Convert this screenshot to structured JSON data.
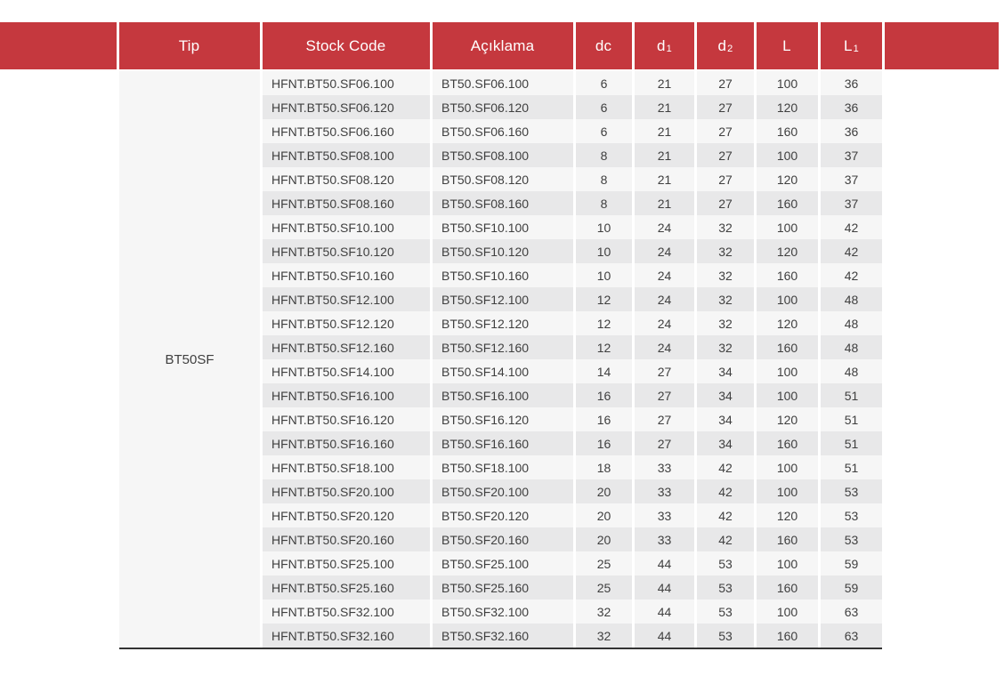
{
  "colors": {
    "header_red": "#c5383e",
    "row_light": "#f6f6f6",
    "row_dark": "#e8e8e9",
    "body_text": "#3f3f3f",
    "bottom_border": "#333333"
  },
  "table": {
    "tip_value": "BT50SF",
    "columns": [
      {
        "label": "Tip",
        "sub": ""
      },
      {
        "label": "Stock Code",
        "sub": ""
      },
      {
        "label": "Açıklama",
        "sub": ""
      },
      {
        "label": "dc",
        "sub": ""
      },
      {
        "label": "d",
        "sub": "1"
      },
      {
        "label": "d",
        "sub": "2"
      },
      {
        "label": "L",
        "sub": ""
      },
      {
        "label": "L",
        "sub": "1"
      }
    ],
    "rows": [
      [
        "HFNT.BT50.SF06.100",
        "BT50.SF06.100",
        "6",
        "21",
        "27",
        "100",
        "36"
      ],
      [
        "HFNT.BT50.SF06.120",
        "BT50.SF06.120",
        "6",
        "21",
        "27",
        "120",
        "36"
      ],
      [
        "HFNT.BT50.SF06.160",
        "BT50.SF06.160",
        "6",
        "21",
        "27",
        "160",
        "36"
      ],
      [
        "HFNT.BT50.SF08.100",
        "BT50.SF08.100",
        "8",
        "21",
        "27",
        "100",
        "37"
      ],
      [
        "HFNT.BT50.SF08.120",
        "BT50.SF08.120",
        "8",
        "21",
        "27",
        "120",
        "37"
      ],
      [
        "HFNT.BT50.SF08.160",
        "BT50.SF08.160",
        "8",
        "21",
        "27",
        "160",
        "37"
      ],
      [
        "HFNT.BT50.SF10.100",
        "BT50.SF10.100",
        "10",
        "24",
        "32",
        "100",
        "42"
      ],
      [
        "HFNT.BT50.SF10.120",
        "BT50.SF10.120",
        "10",
        "24",
        "32",
        "120",
        "42"
      ],
      [
        "HFNT.BT50.SF10.160",
        "BT50.SF10.160",
        "10",
        "24",
        "32",
        "160",
        "42"
      ],
      [
        "HFNT.BT50.SF12.100",
        "BT50.SF12.100",
        "12",
        "24",
        "32",
        "100",
        "48"
      ],
      [
        "HFNT.BT50.SF12.120",
        "BT50.SF12.120",
        "12",
        "24",
        "32",
        "120",
        "48"
      ],
      [
        "HFNT.BT50.SF12.160",
        "BT50.SF12.160",
        "12",
        "24",
        "32",
        "160",
        "48"
      ],
      [
        "HFNT.BT50.SF14.100",
        "BT50.SF14.100",
        "14",
        "27",
        "34",
        "100",
        "48"
      ],
      [
        "HFNT.BT50.SF16.100",
        "BT50.SF16.100",
        "16",
        "27",
        "34",
        "100",
        "51"
      ],
      [
        "HFNT.BT50.SF16.120",
        "BT50.SF16.120",
        "16",
        "27",
        "34",
        "120",
        "51"
      ],
      [
        "HFNT.BT50.SF16.160",
        "BT50.SF16.160",
        "16",
        "27",
        "34",
        "160",
        "51"
      ],
      [
        "HFNT.BT50.SF18.100",
        "BT50.SF18.100",
        "18",
        "33",
        "42",
        "100",
        "51"
      ],
      [
        "HFNT.BT50.SF20.100",
        "BT50.SF20.100",
        "20",
        "33",
        "42",
        "100",
        "53"
      ],
      [
        "HFNT.BT50.SF20.120",
        "BT50.SF20.120",
        "20",
        "33",
        "42",
        "120",
        "53"
      ],
      [
        "HFNT.BT50.SF20.160",
        "BT50.SF20.160",
        "20",
        "33",
        "42",
        "160",
        "53"
      ],
      [
        "HFNT.BT50.SF25.100",
        "BT50.SF25.100",
        "25",
        "44",
        "53",
        "100",
        "59"
      ],
      [
        "HFNT.BT50.SF25.160",
        "BT50.SF25.160",
        "25",
        "44",
        "53",
        "160",
        "59"
      ],
      [
        "HFNT.BT50.SF32.100",
        "BT50.SF32.100",
        "32",
        "44",
        "53",
        "100",
        "63"
      ],
      [
        "HFNT.BT50.SF32.160",
        "BT50.SF32.160",
        "32",
        "44",
        "53",
        "160",
        "63"
      ]
    ]
  }
}
